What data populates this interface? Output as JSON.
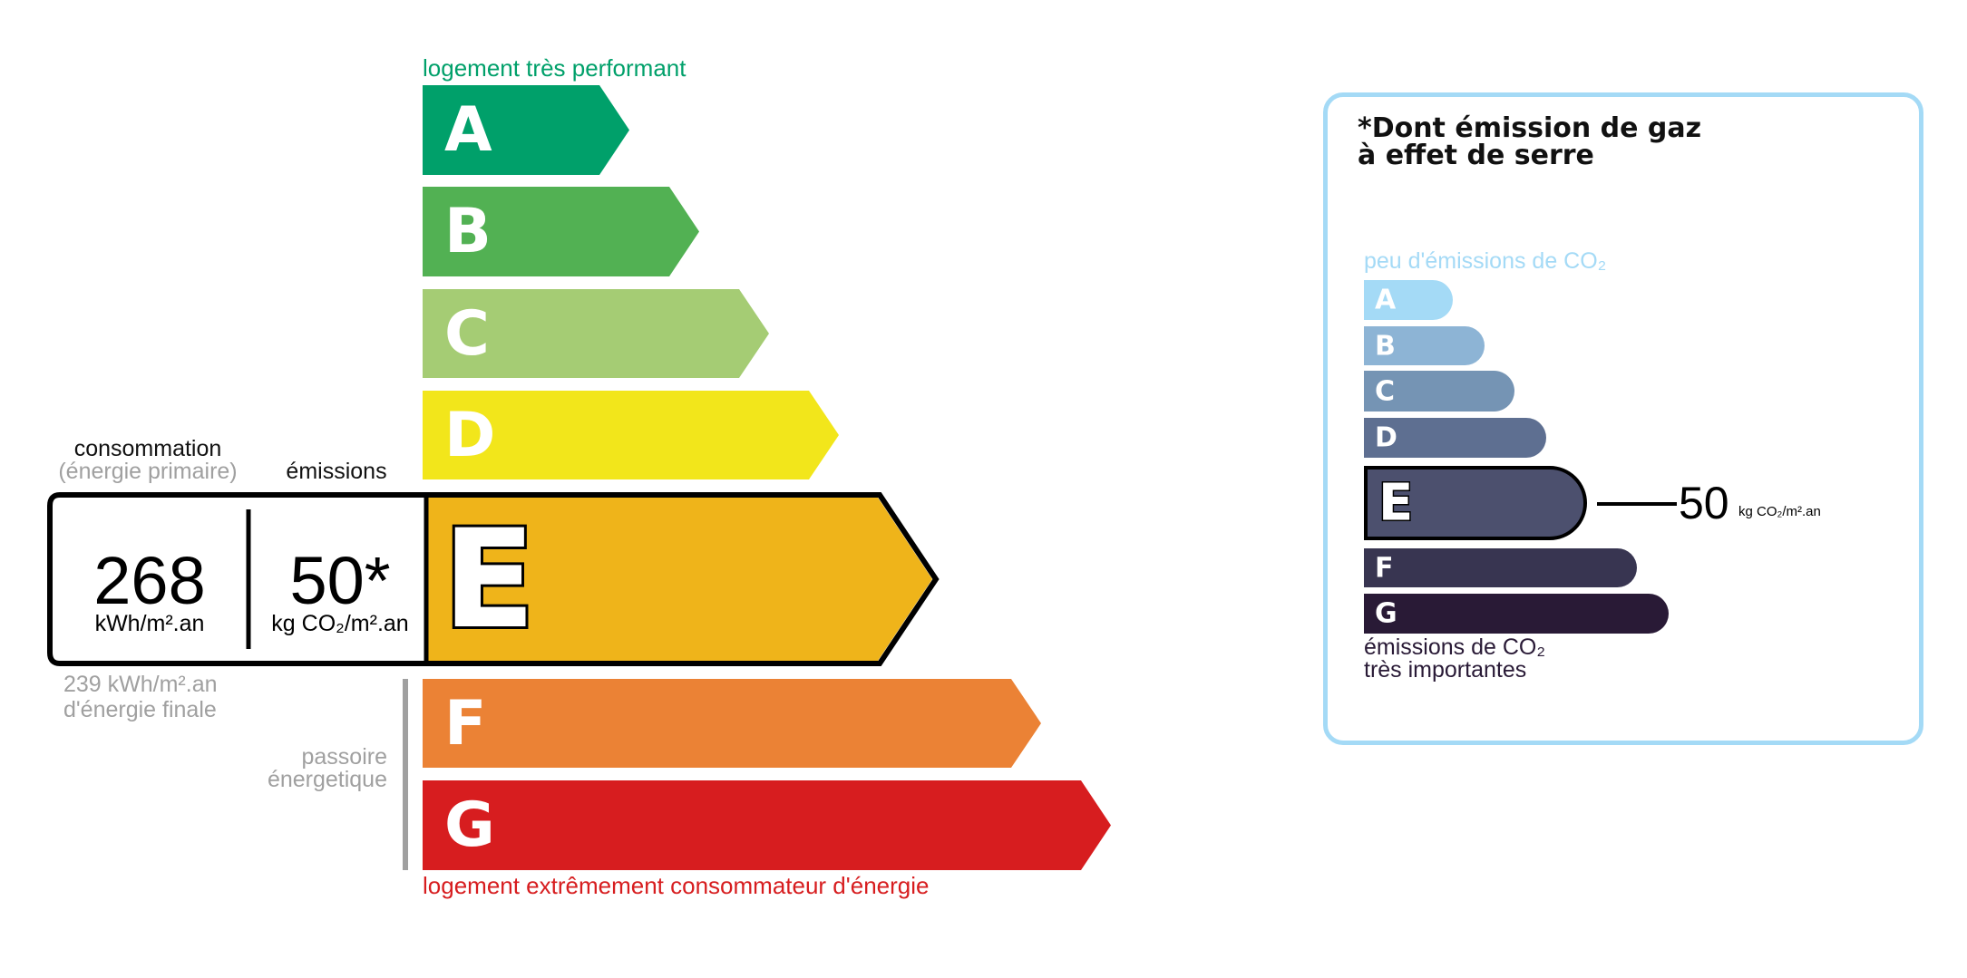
{
  "energy": {
    "top_label": "logement très performant",
    "bottom_label": "logement extrêmement consommateur d'énergie",
    "top_label_color": "#00a06a",
    "bottom_label_color": "#d71d1f",
    "classes": [
      {
        "letter": "A",
        "color": "#00a06a"
      },
      {
        "letter": "B",
        "color": "#52b153"
      },
      {
        "letter": "C",
        "color": "#a5cc74"
      },
      {
        "letter": "D",
        "color": "#f2e61b"
      },
      {
        "letter": "E",
        "color": "#efb41a"
      },
      {
        "letter": "F",
        "color": "#eb8235"
      },
      {
        "letter": "G",
        "color": "#d71d1f"
      }
    ],
    "current_class": "E",
    "consumption_label": "consommation",
    "consumption_sublabel": "(énergie primaire)",
    "emissions_label": "émissions",
    "consumption_value": "268",
    "consumption_unit": "kWh/m².an",
    "emissions_value": "50*",
    "emissions_unit": "kg CO₂/m².an",
    "final_energy_line1": "239 kWh/m².an",
    "final_energy_line2": "d'énergie finale",
    "passoire_line1": "passoire",
    "passoire_line2": "énergetique"
  },
  "ghg": {
    "title_line1": "*Dont émission de gaz",
    "title_line2": "à effet de serre",
    "top_label": "peu d'émissions de CO₂",
    "bottom_label_line1": "émissions de CO₂",
    "bottom_label_line2": "très importantes",
    "border_color": "#a4daf6",
    "classes": [
      {
        "letter": "A",
        "color": "#a4daf6"
      },
      {
        "letter": "B",
        "color": "#8db4d5"
      },
      {
        "letter": "C",
        "color": "#7594b4"
      },
      {
        "letter": "D",
        "color": "#5e6f91"
      },
      {
        "letter": "E",
        "color": "#4c506e"
      },
      {
        "letter": "F",
        "color": "#383551"
      },
      {
        "letter": "G",
        "color": "#291a36"
      }
    ],
    "current_class": "E",
    "value": "50",
    "unit": "kg CO₂/m².an"
  }
}
